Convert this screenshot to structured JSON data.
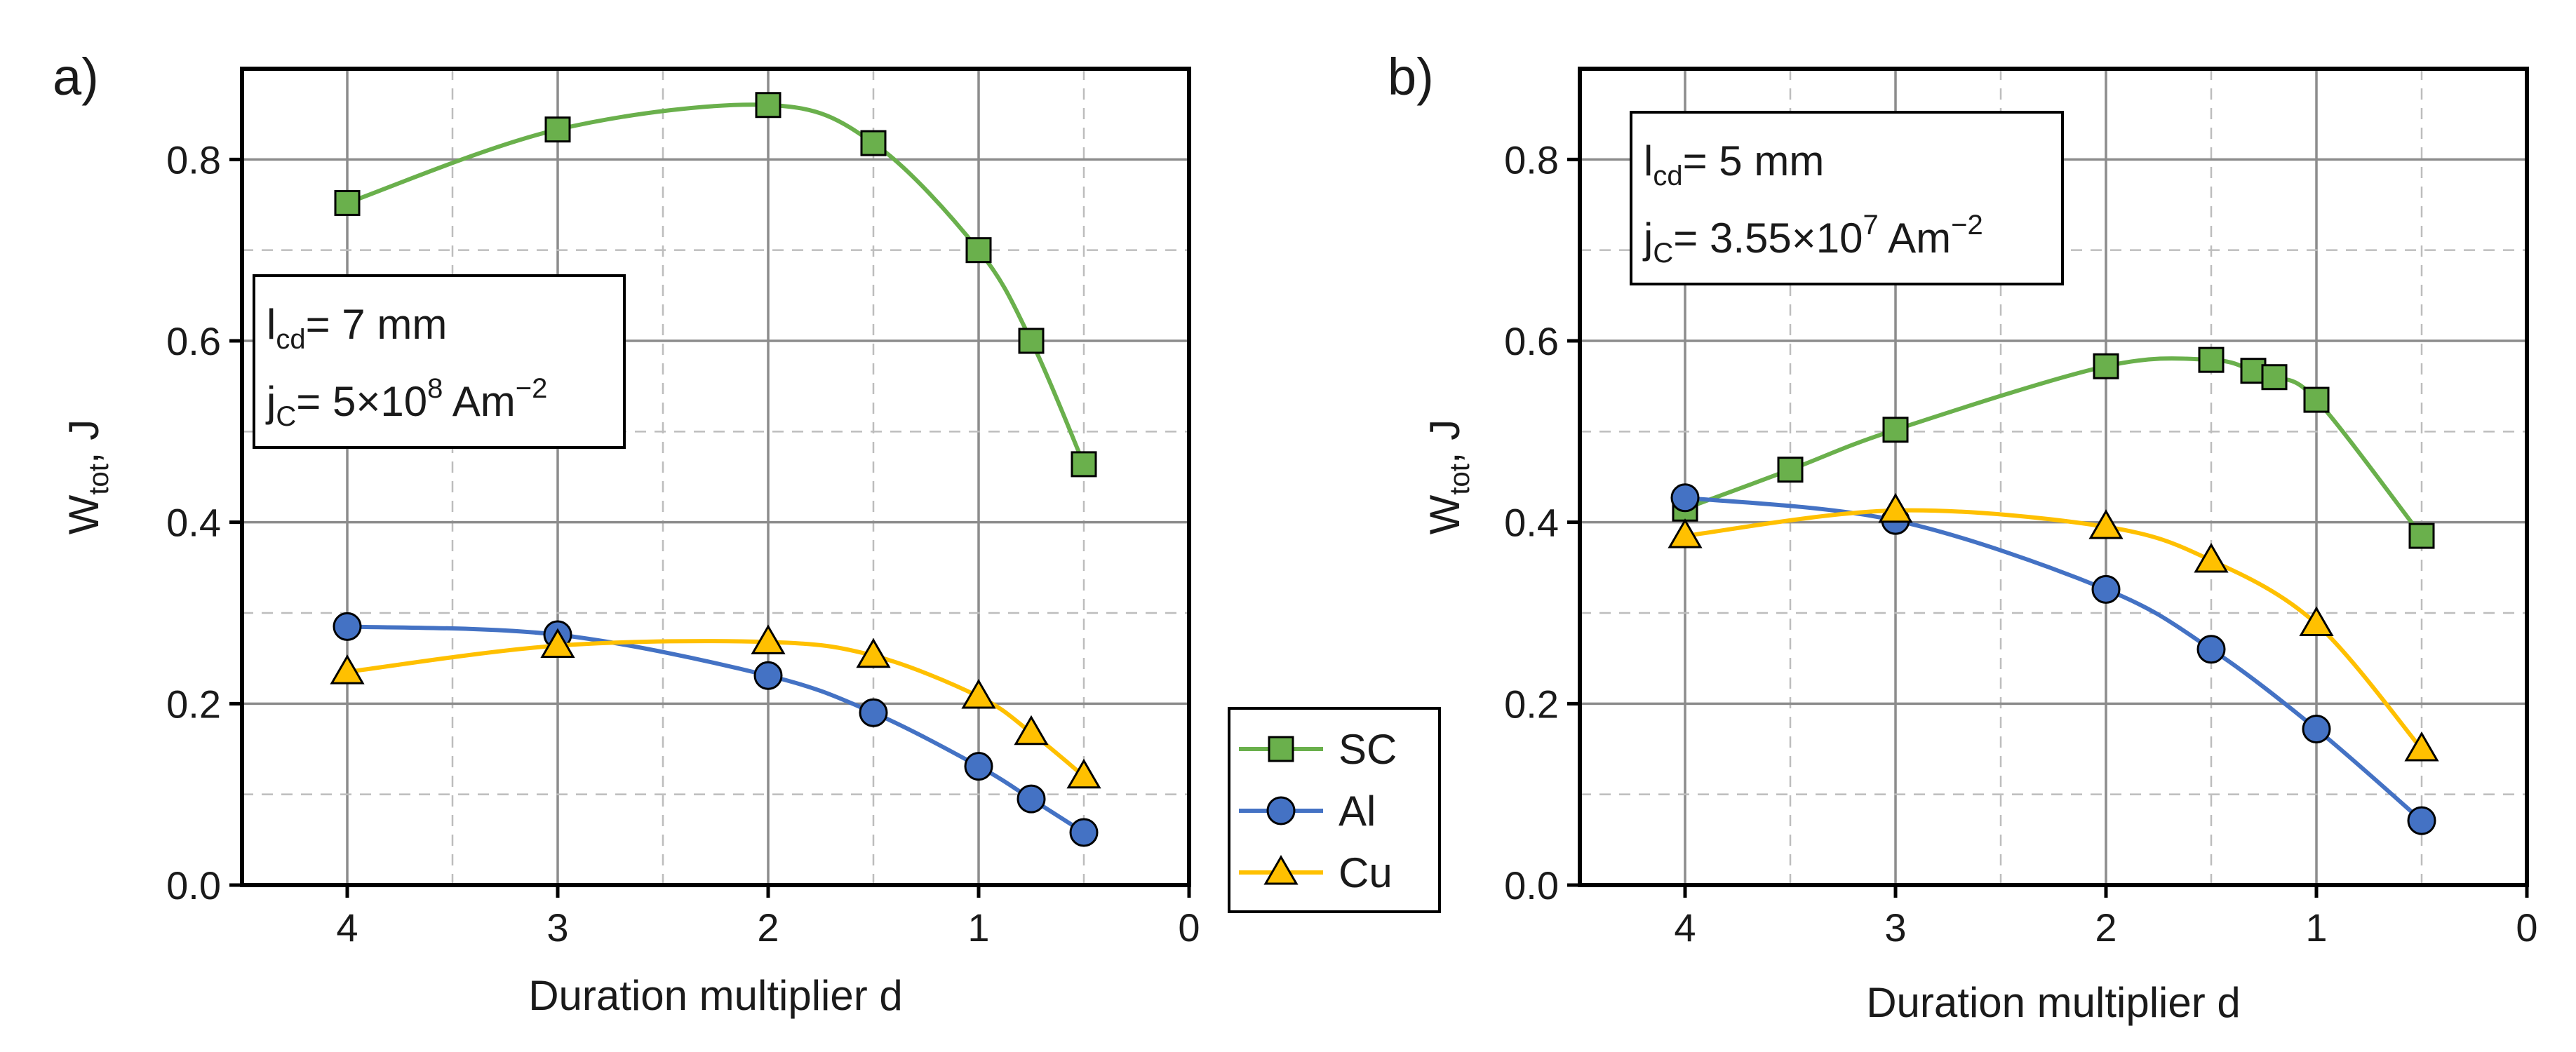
{
  "chart_data": [
    {
      "panel": "a)",
      "type": "line",
      "xlabel": "Duration multiplier d",
      "ylabel": "W",
      "ylabel_sub": "tot",
      "ylabel_tail": ", J",
      "xlim": [
        4.5,
        0
      ],
      "ylim": [
        0,
        0.9
      ],
      "x_ticks": [
        4,
        3,
        2,
        1,
        0
      ],
      "y_ticks": [
        0.0,
        0.2,
        0.4,
        0.6,
        0.8
      ],
      "y_tick_labels": [
        "0.0",
        "0.2",
        "0.4",
        "0.6",
        "0.8"
      ],
      "grid": true,
      "annotation": {
        "line1_main": "l",
        "line1_sub": "cd",
        "line1_rest": "= 7 mm",
        "line2_main": "j",
        "line2_sub": "C",
        "line2_rest": "= 5×10",
        "line2_sup": "8",
        "line2_unit": " Am",
        "line2_unit_sup": "−2"
      },
      "series": [
        {
          "name": "SC",
          "marker": "square",
          "color": "#6ab04c",
          "x": [
            4,
            3,
            2,
            1.5,
            1,
            0.75,
            0.5
          ],
          "y": [
            0.752,
            0.833,
            0.86,
            0.818,
            0.7,
            0.6,
            0.464
          ]
        },
        {
          "name": "Al",
          "marker": "circle",
          "color": "#4472c4",
          "x": [
            4,
            3,
            2,
            1.5,
            1,
            0.75,
            0.5
          ],
          "y": [
            0.285,
            0.276,
            0.231,
            0.19,
            0.131,
            0.095,
            0.058
          ]
        },
        {
          "name": "Cu",
          "marker": "triangle",
          "color": "#ffc000",
          "x": [
            4,
            3,
            2,
            1.5,
            1,
            0.75,
            0.5
          ],
          "y": [
            0.235,
            0.264,
            0.268,
            0.253,
            0.208,
            0.168,
            0.12
          ]
        }
      ]
    },
    {
      "panel": "b)",
      "type": "line",
      "xlabel": "Duration multiplier d",
      "ylabel": "W",
      "ylabel_sub": "tot",
      "ylabel_tail": ", J",
      "xlim": [
        4.5,
        0
      ],
      "ylim": [
        0,
        0.9
      ],
      "x_ticks": [
        4,
        3,
        2,
        1,
        0
      ],
      "y_ticks": [
        0.0,
        0.2,
        0.4,
        0.6,
        0.8
      ],
      "y_tick_labels": [
        "0.0",
        "0.2",
        "0.4",
        "0.6",
        "0.8"
      ],
      "grid": true,
      "annotation": {
        "line1_main": "l",
        "line1_sub": "cd",
        "line1_rest": "= 5 mm",
        "line2_main": "j",
        "line2_sub": "C",
        "line2_rest": "= 3.55×10",
        "line2_sup": "7",
        "line2_unit": " Am",
        "line2_unit_sup": "−2"
      },
      "series": [
        {
          "name": "SC",
          "marker": "square",
          "color": "#6ab04c",
          "x": [
            4,
            3.5,
            3,
            2,
            1.5,
            1.3,
            1.2,
            1,
            0.5
          ],
          "y": [
            0.415,
            0.458,
            0.502,
            0.572,
            0.579,
            0.567,
            0.56,
            0.535,
            0.385
          ]
        },
        {
          "name": "Al",
          "marker": "circle",
          "color": "#4472c4",
          "x": [
            4,
            3,
            2,
            1.5,
            1,
            0.5
          ],
          "y": [
            0.427,
            0.402,
            0.326,
            0.26,
            0.172,
            0.071
          ]
        },
        {
          "name": "Cu",
          "marker": "triangle",
          "color": "#ffc000",
          "x": [
            4,
            3,
            2,
            1.5,
            1,
            0.5
          ],
          "y": [
            0.385,
            0.413,
            0.395,
            0.358,
            0.288,
            0.15
          ]
        }
      ]
    }
  ],
  "legend": [
    {
      "name": "SC",
      "marker": "square",
      "color": "#6ab04c"
    },
    {
      "name": "Al",
      "marker": "circle",
      "color": "#4472c4"
    },
    {
      "name": "Cu",
      "marker": "triangle",
      "color": "#ffc000"
    }
  ]
}
